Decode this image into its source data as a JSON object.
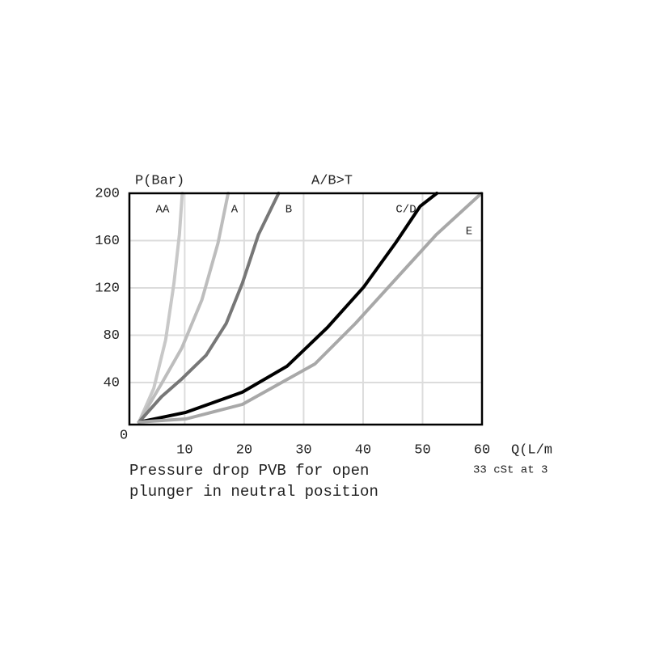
{
  "chart_data": {
    "type": "line",
    "title": "A/B>T",
    "y_label": "P(Bar)",
    "x_label": "Q(L/m",
    "x_note": "33 cSt at 3",
    "origin_label": "0",
    "caption": [
      "Pressure drop PVB for open",
      "plunger in neutral position"
    ],
    "xlim": [
      0.7,
      60
    ],
    "ylim": [
      4.4,
      200
    ],
    "xticks": [
      10,
      20,
      30,
      40,
      50,
      60
    ],
    "yticks": [
      40,
      80,
      120,
      160,
      200
    ],
    "grid": true,
    "series": [
      {
        "name": "AA",
        "color": "#c8c8c8",
        "x": [
          2.3,
          4.8,
          6.8,
          8.2,
          9.1,
          9.6
        ],
        "values": [
          6.5,
          35,
          76,
          124,
          165,
          200
        ]
      },
      {
        "name": "A",
        "color": "#bdbdbd",
        "x": [
          2.3,
          6.1,
          9.5,
          12.9,
          15.6,
          17.3
        ],
        "values": [
          6.5,
          39,
          69,
          110,
          158,
          200
        ]
      },
      {
        "name": "B",
        "color": "#777777",
        "x": [
          2.3,
          6.1,
          9.5,
          13.6,
          17,
          19.7,
          22.4,
          25.8
        ],
        "values": [
          6.5,
          28,
          43,
          63,
          90,
          124,
          165,
          200
        ]
      },
      {
        "name": "C/D",
        "color": "#000000",
        "x": [
          2.3,
          10.2,
          19.7,
          27.2,
          34,
          40.1,
          45.5,
          49.6,
          52.4
        ],
        "values": [
          6.5,
          14.7,
          31.8,
          53.7,
          86.5,
          120.7,
          158.3,
          189,
          200
        ]
      },
      {
        "name": "E",
        "color": "#a8a8a8",
        "x": [
          2.3,
          10.2,
          19.7,
          25.1,
          31.9,
          38.7,
          45.5,
          52.3,
          59.9
        ],
        "values": [
          6.5,
          9.2,
          21.5,
          36.6,
          55.7,
          89.9,
          127.5,
          165,
          200
        ]
      }
    ]
  }
}
